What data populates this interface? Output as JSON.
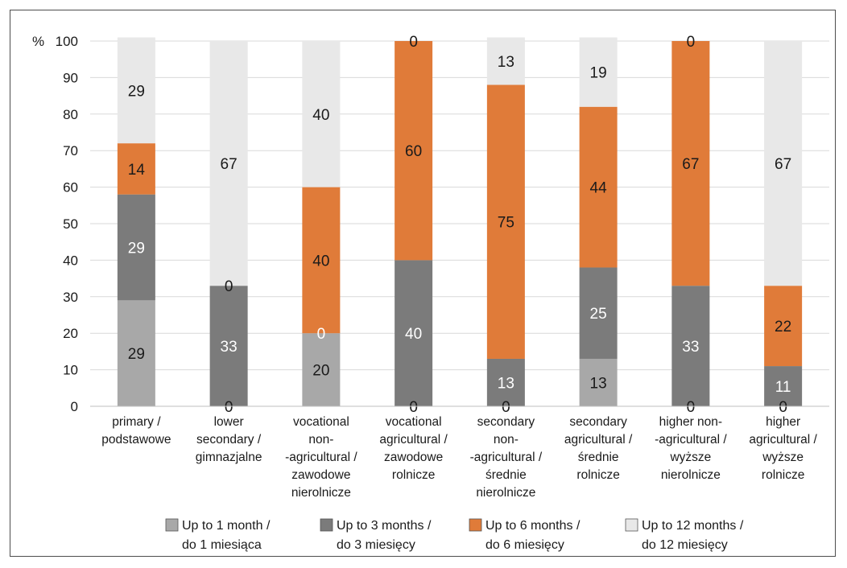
{
  "chart_data": {
    "type": "bar",
    "stacked": true,
    "title": "",
    "ylabel": "%",
    "xlabel": "",
    "ylim": [
      0,
      100
    ],
    "yticks": [
      0,
      10,
      20,
      30,
      40,
      50,
      60,
      70,
      80,
      90,
      100
    ],
    "grid": true,
    "legend_position": "bottom",
    "categories": [
      [
        "primary /",
        "podstawowe"
      ],
      [
        "lower",
        "secondary /",
        "gimnazjalne"
      ],
      [
        "vocational",
        "non-",
        "-agricultural /",
        "zawodowe",
        "nierolnicze"
      ],
      [
        "vocational",
        "agricultural /",
        "zawodowe",
        "rolnicze"
      ],
      [
        "secondary",
        "non-",
        "-agricultural /",
        "średnie",
        "nierolnicze"
      ],
      [
        "secondary",
        "agricultural /",
        "średnie",
        "rolnicze"
      ],
      [
        "higher non-",
        "-agricultural /",
        "wyższe",
        "nierolnicze"
      ],
      [
        "higher",
        "agricultural /",
        "wyższe",
        "rolnicze"
      ]
    ],
    "series": [
      {
        "name": [
          "Up to 1 month /",
          "do 1 miesiąca"
        ],
        "color": "#a8a8a8",
        "label_color": "#1a1a1a",
        "values": [
          29,
          0,
          20,
          0,
          0,
          13,
          0,
          0
        ],
        "labels": [
          "29",
          "0",
          "20",
          "0",
          "0",
          "13",
          "0",
          "0"
        ]
      },
      {
        "name": [
          "Up to 3 months /",
          "do 3 miesięcy"
        ],
        "color": "#7b7b7b",
        "label_color": "#ffffff",
        "values": [
          29,
          33,
          0,
          40,
          13,
          25,
          33,
          11
        ],
        "labels": [
          "29",
          "33",
          "0",
          "40",
          "13",
          "25",
          "33",
          "11"
        ]
      },
      {
        "name": [
          "Up to 6 months /",
          "do 6 miesięcy"
        ],
        "color": "#e07b39",
        "label_color": "#1a1a1a",
        "values": [
          14,
          0,
          40,
          60,
          75,
          44,
          67,
          22
        ],
        "labels": [
          "14",
          "0",
          "40",
          "60",
          "75",
          "44",
          "67",
          "22"
        ]
      },
      {
        "name": [
          "Up to 12 months /",
          "do 12 miesięcy"
        ],
        "color": "#e8e8e8",
        "label_color": "#1a1a1a",
        "values": [
          29,
          67,
          40,
          0,
          13,
          19,
          0,
          67
        ],
        "labels": [
          "29",
          "67",
          "40",
          "0",
          "13",
          "19",
          "0",
          "67"
        ]
      }
    ]
  }
}
